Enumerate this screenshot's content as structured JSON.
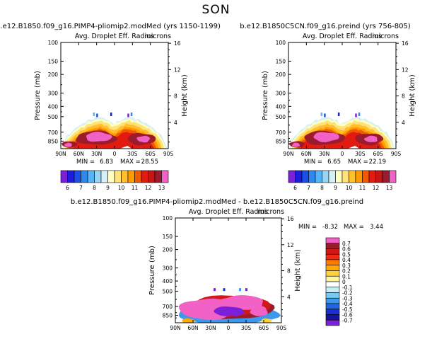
{
  "figure": {
    "title": "SON"
  },
  "chart_data": [
    {
      "type": "heatmap",
      "title": "b.e12.B1850.f09_g16.PIMP4-pliomip2.modMed (yrs 1150-1199)",
      "subtitle": "Avg. Droplet Eff. Radius",
      "units": "microns",
      "xlabel": "",
      "ylabel": "Pressure (mb)",
      "y2label": "Height (km)",
      "x_ticks": [
        "90N",
        "60N",
        "30N",
        "0",
        "30S",
        "60S",
        "90S"
      ],
      "y_ticks": [
        100,
        150,
        200,
        300,
        400,
        500,
        700,
        850
      ],
      "y2_ticks": [
        16,
        12,
        8,
        4
      ],
      "ylim": [
        1000,
        100
      ],
      "min_label": "MIN =",
      "min_value": "6.83",
      "max_label": "MAX =",
      "max_value": "28.55",
      "colorbar": {
        "orientation": "horizontal",
        "levels": [
          "6",
          "7",
          "8",
          "9",
          "10",
          "11",
          "12",
          "13"
        ],
        "colors": [
          "#7b1fd8",
          "#1d1de0",
          "#1b4fe6",
          "#2f88f2",
          "#54b4f6",
          "#96d6f4",
          "#d6f0f6",
          "#ffffc0",
          "#ffe27a",
          "#ffc02c",
          "#ff9a00",
          "#f25a00",
          "#e21a10",
          "#c81414",
          "#9a1c2c",
          "#f262c6"
        ]
      }
    },
    {
      "type": "heatmap",
      "title": "b.e12.B1850C5CN.f09_g16.preind (yrs 756-805)",
      "subtitle": "Avg. Droplet Eff. Radius",
      "units": "microns",
      "xlabel": "",
      "ylabel": "Pressure (mb)",
      "y2label": "Height (km)",
      "x_ticks": [
        "90N",
        "60N",
        "30N",
        "0",
        "30S",
        "60S",
        "90S"
      ],
      "y_ticks": [
        100,
        150,
        200,
        300,
        400,
        500,
        700,
        850
      ],
      "y2_ticks": [
        16,
        12,
        8,
        4
      ],
      "ylim": [
        1000,
        100
      ],
      "min_label": "MIN =",
      "min_value": "6.65",
      "max_label": "MAX =",
      "max_value": "22.19",
      "colorbar": {
        "orientation": "horizontal",
        "levels": [
          "6",
          "7",
          "8",
          "9",
          "10",
          "11",
          "12",
          "13"
        ],
        "colors": [
          "#7b1fd8",
          "#1d1de0",
          "#1b4fe6",
          "#2f88f2",
          "#54b4f6",
          "#96d6f4",
          "#d6f0f6",
          "#ffffc0",
          "#ffe27a",
          "#ffc02c",
          "#ff9a00",
          "#f25a00",
          "#e21a10",
          "#c81414",
          "#9a1c2c",
          "#f262c6"
        ]
      }
    },
    {
      "type": "heatmap",
      "title": "b.e12.B1850.f09_g16.PIMP4-pliomip2.modMed - b.e12.B1850C5CN.f09_g16.preind",
      "subtitle": "Avg. Droplet Eff. Radius",
      "units": "microns",
      "xlabel": "",
      "ylabel": "Pressure (mb)",
      "y2label": "Height (km)",
      "x_ticks": [
        "90N",
        "60N",
        "30N",
        "0",
        "30S",
        "60S",
        "90S"
      ],
      "y_ticks": [
        100,
        150,
        200,
        300,
        400,
        500,
        700,
        850
      ],
      "y2_ticks": [
        16,
        12,
        8,
        4
      ],
      "ylim": [
        1000,
        100
      ],
      "min_label": "MIN =",
      "min_value": "-8.32",
      "max_label": "MAX =",
      "max_value": "3.44",
      "colorbar": {
        "orientation": "vertical",
        "levels": [
          "0.7",
          "0.6",
          "0.5",
          "0.4",
          "0.3",
          "0.2",
          "0.1",
          "0",
          "-0.1",
          "-0.2",
          "-0.3",
          "-0.4",
          "-0.5",
          "-0.6",
          "-0.7"
        ],
        "colors": [
          "#f262c6",
          "#9a1c2c",
          "#d01818",
          "#f02a10",
          "#ff7a00",
          "#ffa800",
          "#ffd23c",
          "#fff4a0",
          "#ffffff",
          "#c8ecf6",
          "#7ccaf2",
          "#3c98ec",
          "#2164e4",
          "#1a2ed8",
          "#14149c",
          "#7b1fd8"
        ]
      }
    }
  ]
}
